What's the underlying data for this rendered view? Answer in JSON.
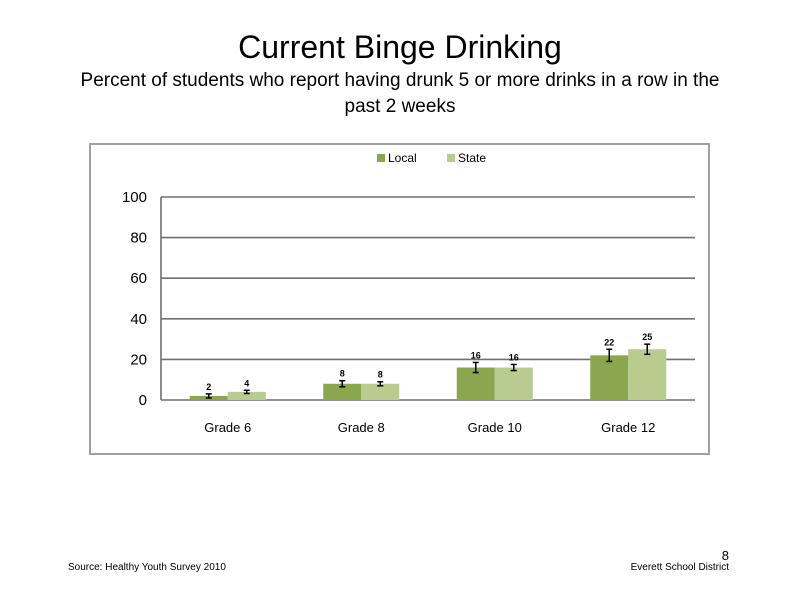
{
  "slide": {
    "title": "Current Binge Drinking",
    "subtitle": "Percent of students who report having drunk 5 or more drinks in a row in the past 2 weeks",
    "source": "Source: Healthy Youth Survey 2010",
    "organization": "Everett School District",
    "page_number": "8"
  },
  "chart_data": {
    "type": "bar",
    "categories": [
      "Grade 6",
      "Grade 8",
      "Grade 10",
      "Grade 12"
    ],
    "series": [
      {
        "name": "Local",
        "values": [
          2,
          8,
          16,
          22
        ],
        "error": [
          1,
          1.5,
          2.5,
          3
        ],
        "color": "#8aa64f"
      },
      {
        "name": "State",
        "values": [
          4,
          8,
          16,
          25
        ],
        "error": [
          0.8,
          1,
          1.5,
          2.5
        ],
        "color": "#b7cc8e"
      }
    ],
    "ylim": [
      0,
      100
    ],
    "yticks": [
      0,
      20,
      40,
      60,
      80,
      100
    ],
    "grid": true,
    "legend": "top-center"
  }
}
